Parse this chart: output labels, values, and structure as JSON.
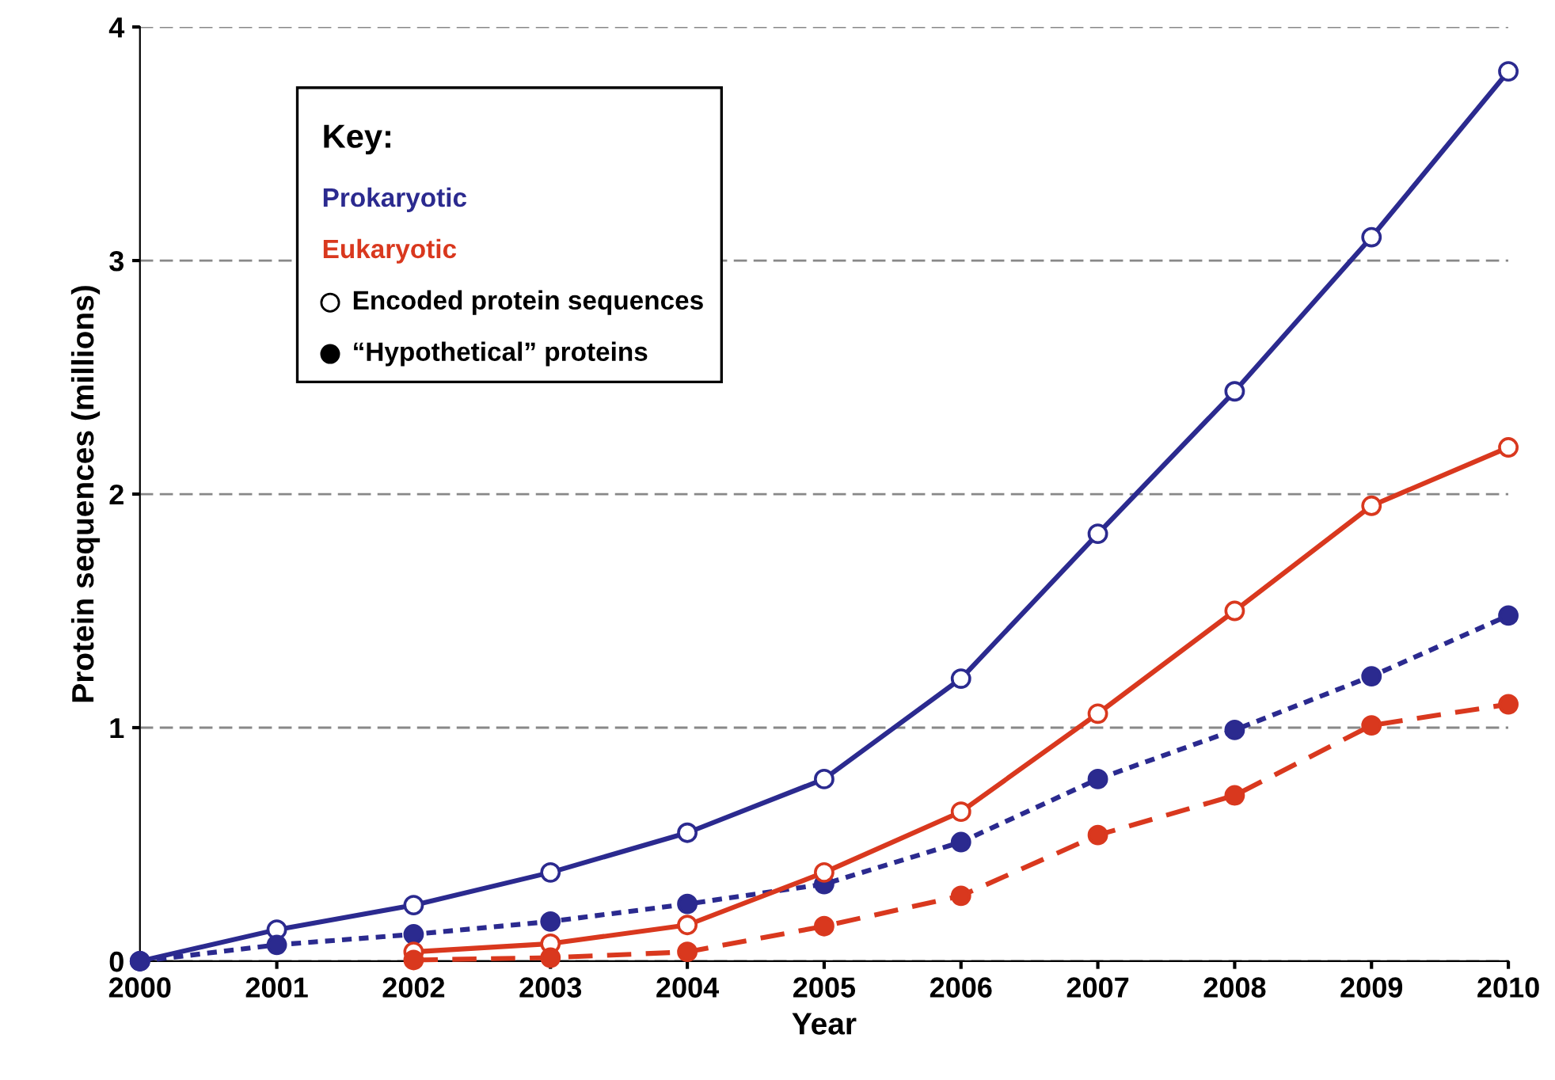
{
  "chart_data": {
    "type": "line",
    "xlabel": "Year",
    "ylabel": "Protein sequences (millions)",
    "x": [
      2000,
      2001,
      2002,
      2003,
      2004,
      2005,
      2006,
      2007,
      2008,
      2009,
      2010
    ],
    "series": [
      {
        "color": "#2b2a8f",
        "line_style": "solid",
        "values": [
          0,
          0.135,
          0.24,
          0.38,
          0.55,
          0.78,
          1.21,
          1.83,
          2.44,
          3.1,
          3.81
        ]
      },
      {
        "color": "#2b2a8f",
        "line_style": "dotted",
        "values": [
          0,
          0.07,
          0.115,
          0.17,
          0.245,
          0.33,
          0.51,
          0.78,
          0.99,
          1.22,
          1.48
        ]
      },
      {
        "color": "#d9381e",
        "line_style": "solid",
        "values": [
          null,
          null,
          0.04,
          0.075,
          0.155,
          0.38,
          0.64,
          1.06,
          1.5,
          1.95,
          2.2
        ]
      },
      {
        "color": "#d9381e",
        "line_style": "dashed",
        "values": [
          null,
          null,
          0.005,
          0.015,
          0.04,
          0.15,
          0.28,
          0.54,
          0.71,
          1.01,
          1.1
        ]
      }
    ],
    "legend_title": "Key:",
    "annotations": [
      "Prokaryotic",
      "Eukaryotic",
      "Encoded protein sequences",
      "“Hypothetical” proteins"
    ],
    "marker": "circle",
    "grid": "y",
    "xlim": [
      2000,
      2010
    ],
    "xticks": [
      2000,
      2001,
      2002,
      2003,
      2004,
      2005,
      2006,
      2007,
      2008,
      2009,
      2010
    ],
    "ylim": [
      0,
      4
    ],
    "yticks": [
      0,
      1,
      2,
      3,
      4
    ]
  }
}
